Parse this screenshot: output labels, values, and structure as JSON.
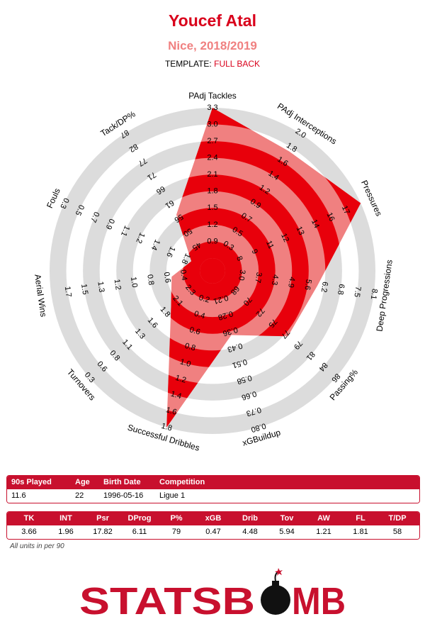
{
  "header": {
    "player": "Youcef Atal",
    "club_season": "Nice, 2018/2019",
    "template_label": "TEMPLATE:",
    "template_value": "FULL BACK"
  },
  "chart_data": {
    "type": "radar",
    "colors": {
      "fill_light": "#f08080",
      "fill_dark": "#e8000b",
      "ring": "#dcdcdc",
      "title": "#d9001b"
    },
    "axes": [
      {
        "label": "PAdj Tackles",
        "ticks": [
          "0.9",
          "1.2",
          "1.5",
          "1.8",
          "2.1",
          "2.4",
          "2.7",
          "3.0",
          "3.3"
        ],
        "value": 3.66
      },
      {
        "label": "PAdj Interceptions",
        "ticks": [
          "0.3",
          "0.5",
          "0.7",
          "0.9",
          "1.2",
          "1.4",
          "1.6",
          "1.8",
          "2.0"
        ],
        "value": 1.96
      },
      {
        "label": "Pressures",
        "ticks": [
          "8",
          "9",
          "11",
          "12",
          "13",
          "14",
          "16",
          "17"
        ],
        "value": 17.82
      },
      {
        "label": "Deep Progressions",
        "ticks": [
          "3.0",
          "3.7",
          "4.3",
          "4.9",
          "5.6",
          "6.2",
          "6.8",
          "7.5",
          "8.1"
        ],
        "value": 6.11
      },
      {
        "label": "Passing%",
        "ticks": [
          "68",
          "70",
          "72",
          "75",
          "77",
          "79",
          "81",
          "84",
          "86"
        ],
        "value": 79
      },
      {
        "label": "xGBuildup",
        "ticks": [
          "0.21",
          "0.28",
          "0.36",
          "0.43",
          "0.51",
          "0.58",
          "0.66",
          "0.73",
          "0.80"
        ],
        "value": 0.47
      },
      {
        "label": "Successful Dribbles",
        "ticks": [
          "0.2",
          "0.4",
          "0.6",
          "0.8",
          "1.0",
          "1.2",
          "1.4",
          "1.6",
          "1.8"
        ],
        "value": 4.48
      },
      {
        "label": "Turnovers",
        "ticks": [
          "2.3",
          "2.1",
          "1.8",
          "1.6",
          "1.3",
          "1.1",
          "0.8",
          "0.6",
          "0.3"
        ],
        "value": 5.94
      },
      {
        "label": "Aerial Wins",
        "ticks": [
          "0.4",
          "0.6",
          "0.8",
          "1.0",
          "1.2",
          "1.3",
          "1.5",
          "1.7"
        ],
        "value": 1.21
      },
      {
        "label": "Fouls",
        "ticks": [
          "1.8",
          "1.6",
          "1.4",
          "1.2",
          "1.1",
          "0.9",
          "0.7",
          "0.5",
          "0.3"
        ],
        "value": 1.81
      },
      {
        "label": "Tack/DP%",
        "ticks": [
          "45",
          "50",
          "56",
          "61",
          "66",
          "71",
          "77",
          "82",
          "87"
        ],
        "value": 58
      }
    ],
    "shape_levels": [
      1.0,
      0.86,
      1.0,
      0.62,
      0.58,
      0.36,
      1.0,
      0.28,
      0.19,
      0.07,
      0.36
    ]
  },
  "info_table": {
    "headers": [
      "90s Played",
      "Age",
      "Birth Date",
      "Competition"
    ],
    "values": [
      "11.6",
      "22",
      "1996-05-16",
      "Ligue 1"
    ]
  },
  "stats_table": {
    "headers": [
      "TK",
      "INT",
      "Psr",
      "DProg",
      "P%",
      "xGB",
      "Drib",
      "Tov",
      "AW",
      "FL",
      "T/DP"
    ],
    "values": [
      "3.66",
      "1.96",
      "17.82",
      "6.11",
      "79",
      "0.47",
      "4.48",
      "5.94",
      "1.21",
      "1.81",
      "58"
    ]
  },
  "note": "All units in per 90",
  "logo": {
    "text_left": "STATSB",
    "text_right": "MB"
  }
}
